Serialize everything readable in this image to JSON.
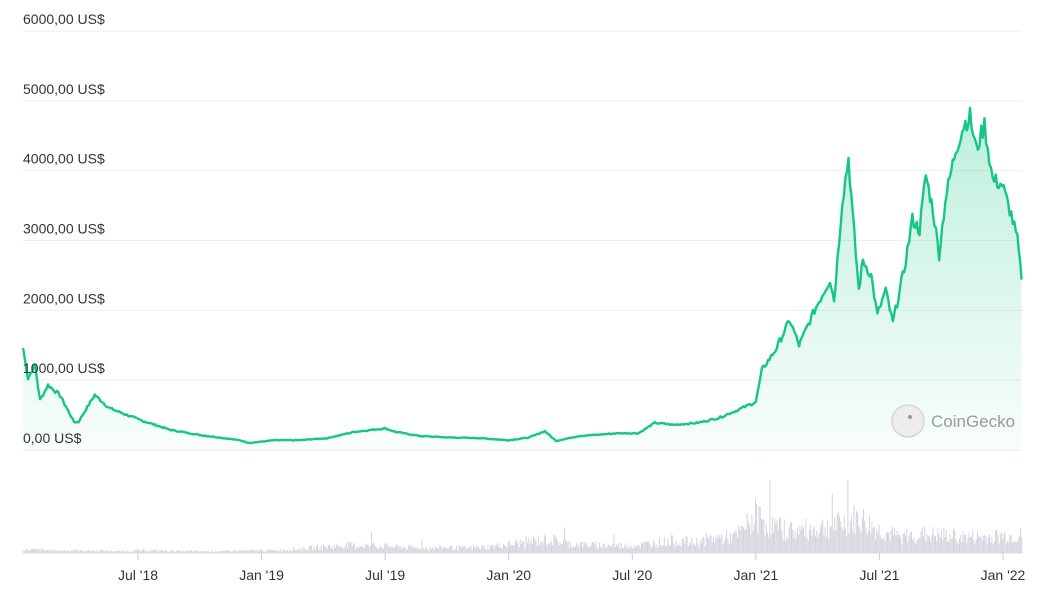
{
  "chart_data": {
    "type": "area",
    "title": "",
    "xlabel": "",
    "ylabel": "",
    "ylim": [
      0,
      6000
    ],
    "y_ticks": [
      "0,00 US$",
      "1000,00 US$",
      "2000,00 US$",
      "3000,00 US$",
      "4000,00 US$",
      "5000,00 US$",
      "6000,00 US$"
    ],
    "y_tick_values": [
      0,
      1000,
      2000,
      3000,
      4000,
      5000,
      6000
    ],
    "x_ticks": [
      "Jul '18",
      "Jan '19",
      "Jul '19",
      "Jan '20",
      "Jul '20",
      "Jan '21",
      "Jul '21",
      "Jan '22"
    ],
    "x_tick_months_since_jan_2018": [
      6,
      12,
      18,
      24,
      30,
      36,
      42,
      48
    ],
    "grid": true,
    "line_color": "#16c784",
    "volume_color": "#d3d4dc",
    "watermark": "CoinGecko",
    "series": [
      {
        "name": "price",
        "x_months_since_jan_2018": [
          0.42,
          0.66,
          1.0,
          1.24,
          1.63,
          2.2,
          2.9,
          3.1,
          3.9,
          4.6,
          6.1,
          7.55,
          9,
          10.95,
          11.4,
          12.6,
          13.8,
          15.2,
          16.5,
          18,
          18.5,
          19.7,
          21.1,
          22.6,
          24.0,
          25.0,
          25.75,
          26.3,
          27.4,
          29.3,
          30.3,
          31.1,
          32.0,
          33.2,
          34.2,
          35.1,
          36.0,
          36.3,
          36.95,
          37.65,
          38.1,
          38.85,
          39.6,
          39.8,
          40.2,
          40.5,
          40.7,
          41.0,
          41.2,
          41.6,
          41.9,
          42.3,
          42.65,
          43.2,
          43.6,
          43.95,
          44.25,
          44.6,
          44.9,
          45.2,
          45.7,
          46.1,
          46.4,
          46.7,
          47.1,
          47.5,
          47.95,
          48.4,
          48.7,
          48.9
        ],
        "values": [
          1460,
          1030,
          1220,
          715,
          930,
          790,
          400,
          400,
          790,
          600,
          430,
          290,
          215,
          140,
          100,
          140,
          140,
          170,
          260,
          310,
          260,
          200,
          180,
          170,
          140,
          180,
          270,
          130,
          200,
          240,
          240,
          390,
          360,
          390,
          460,
          570,
          690,
          1150,
          1430,
          1860,
          1500,
          2000,
          2440,
          2150,
          3580,
          4180,
          3370,
          2290,
          2720,
          2500,
          1930,
          2290,
          1820,
          2580,
          3300,
          3150,
          3940,
          3440,
          2800,
          3580,
          4300,
          4660,
          4770,
          4300,
          4660,
          3870,
          3800,
          3370,
          3010,
          2440
        ]
      },
      {
        "name": "volume",
        "unit": "relative",
        "x_months_since_jan_2018": [
          0,
          1,
          2,
          3,
          4,
          5,
          6,
          7,
          8,
          9,
          10,
          11,
          12,
          13,
          14,
          15,
          16,
          17,
          18,
          19,
          20,
          21,
          22,
          23,
          24,
          25,
          26,
          27,
          28,
          29,
          30,
          31,
          32,
          33,
          34,
          35,
          36,
          37,
          38,
          39,
          40,
          41,
          42,
          43,
          44,
          45,
          46,
          47,
          48
        ],
        "values": [
          6,
          5,
          4,
          4,
          4,
          3,
          4,
          4,
          3,
          3,
          3,
          4,
          4,
          5,
          7,
          10,
          12,
          12,
          11,
          9,
          8,
          9,
          8,
          10,
          14,
          18,
          22,
          14,
          13,
          12,
          12,
          16,
          20,
          17,
          24,
          26,
          60,
          40,
          35,
          40,
          45,
          55,
          35,
          25,
          30,
          28,
          26,
          25,
          27
        ]
      }
    ]
  }
}
